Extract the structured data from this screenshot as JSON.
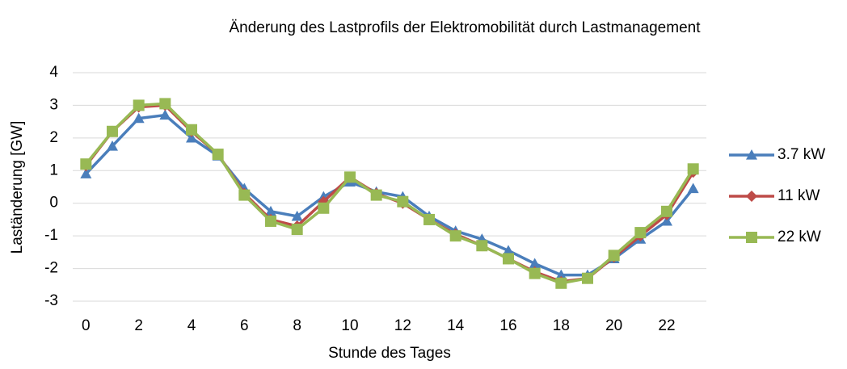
{
  "chart_data": {
    "type": "line",
    "title": "Änderung des Lastprofils der Elektromobilität durch Lastmanagement",
    "x_label": "Stunde des Tages",
    "y_label": "Laständerung [GW]",
    "x": [
      0,
      1,
      2,
      3,
      4,
      5,
      6,
      7,
      8,
      9,
      10,
      11,
      12,
      13,
      14,
      15,
      16,
      17,
      18,
      19,
      20,
      21,
      22,
      23
    ],
    "series": [
      {
        "name": "3.7 kW",
        "color": "#4a7ebb",
        "marker": "triangle",
        "values": [
          0.9,
          1.75,
          2.6,
          2.7,
          2.0,
          1.45,
          0.45,
          -0.25,
          -0.4,
          0.2,
          0.65,
          0.35,
          0.2,
          -0.4,
          -0.85,
          -1.1,
          -1.45,
          -1.85,
          -2.2,
          -2.2,
          -1.7,
          -1.1,
          -0.55,
          0.45
        ]
      },
      {
        "name": "11 kW",
        "color": "#be4b48",
        "marker": "diamond",
        "values": [
          1.15,
          2.2,
          2.95,
          3.0,
          2.2,
          1.5,
          0.3,
          -0.5,
          -0.7,
          0.05,
          0.8,
          0.3,
          0.0,
          -0.5,
          -0.95,
          -1.3,
          -1.7,
          -2.1,
          -2.4,
          -2.3,
          -1.65,
          -1.0,
          -0.35,
          0.95
        ]
      },
      {
        "name": "22 kW",
        "color": "#98b954",
        "marker": "square",
        "values": [
          1.2,
          2.2,
          3.0,
          3.05,
          2.25,
          1.5,
          0.25,
          -0.55,
          -0.8,
          -0.15,
          0.8,
          0.25,
          0.05,
          -0.5,
          -1.0,
          -1.3,
          -1.7,
          -2.15,
          -2.45,
          -2.3,
          -1.6,
          -0.9,
          -0.25,
          1.05
        ]
      }
    ],
    "xlim": [
      -0.5,
      23.5
    ],
    "xticks": [
      0,
      2,
      4,
      6,
      8,
      10,
      12,
      14,
      16,
      18,
      20,
      22
    ],
    "ylim": [
      -3,
      4
    ],
    "yticks": [
      -3,
      -2,
      -1,
      0,
      1,
      2,
      3,
      4
    ],
    "grid": true,
    "legend": "right"
  }
}
